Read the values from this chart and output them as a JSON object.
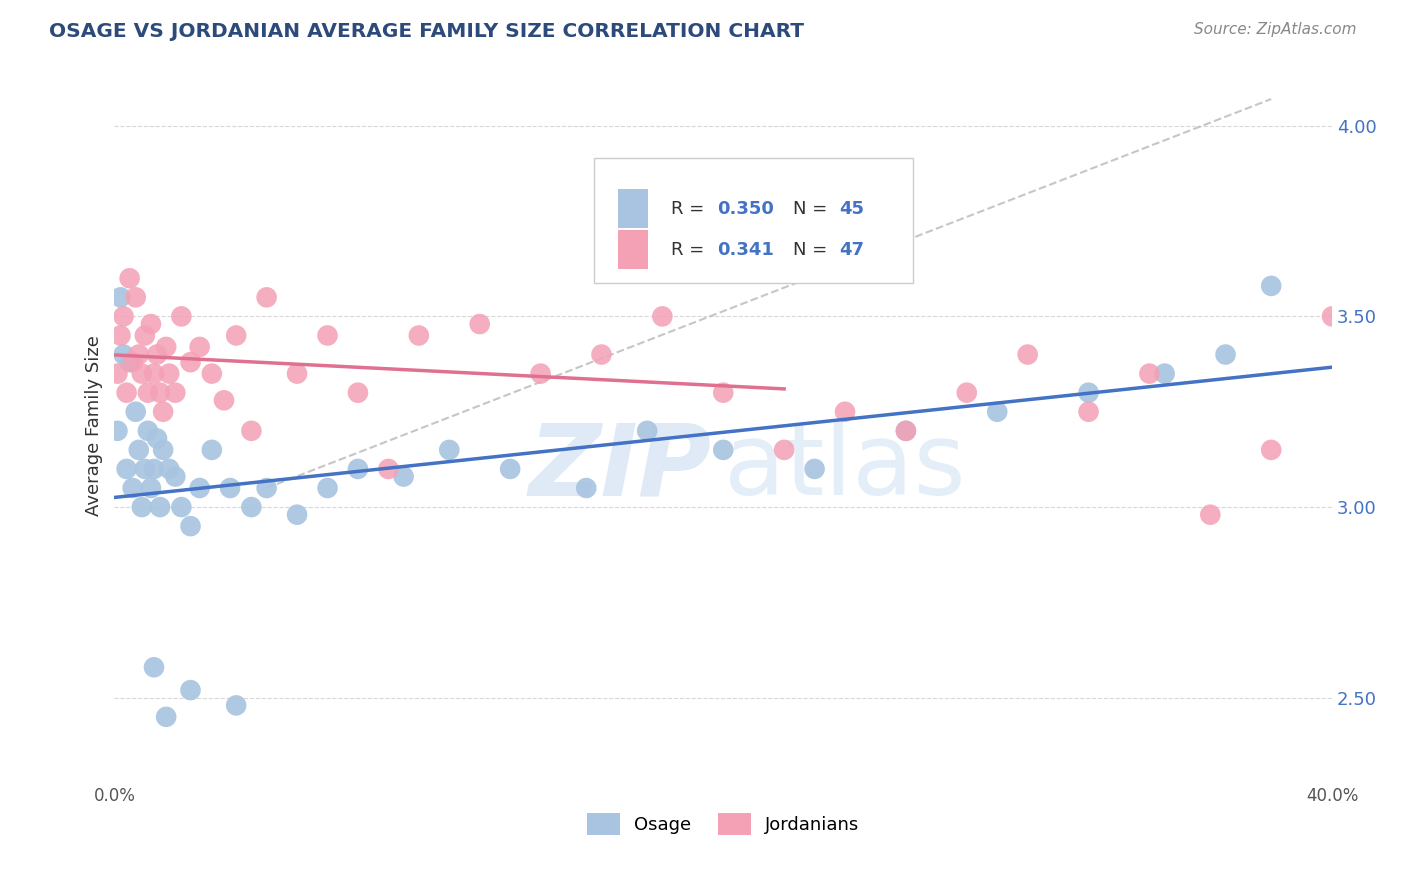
{
  "title": "OSAGE VS JORDANIAN AVERAGE FAMILY SIZE CORRELATION CHART",
  "source": "Source: ZipAtlas.com",
  "ylabel": "Average Family Size",
  "xlim": [
    0.0,
    0.4
  ],
  "ylim": [
    2.28,
    4.15
  ],
  "yticks": [
    2.5,
    3.0,
    3.5,
    4.0
  ],
  "xticks": [
    0.0,
    0.05,
    0.1,
    0.15,
    0.2,
    0.25,
    0.3,
    0.35,
    0.4
  ],
  "osage_R": 0.35,
  "osage_N": 45,
  "jordan_R": 0.341,
  "jordan_N": 47,
  "osage_color": "#a8c4e0",
  "jordan_color": "#f4a0b5",
  "osage_line_color": "#4472c4",
  "jordan_line_color": "#e07090",
  "trend_line_color": "#b8b8b8",
  "background_color": "#ffffff",
  "grid_color": "#d8d8d8",
  "title_color": "#2c4a7c",
  "osage_x": [
    0.001,
    0.002,
    0.003,
    0.004,
    0.005,
    0.006,
    0.007,
    0.008,
    0.009,
    0.01,
    0.011,
    0.012,
    0.013,
    0.014,
    0.015,
    0.016,
    0.018,
    0.02,
    0.022,
    0.025,
    0.028,
    0.032,
    0.038,
    0.045,
    0.05,
    0.06,
    0.07,
    0.08,
    0.095,
    0.11,
    0.13,
    0.155,
    0.175,
    0.2,
    0.23,
    0.26,
    0.29,
    0.32,
    0.345,
    0.365,
    0.38,
    0.04,
    0.025,
    0.017,
    0.013
  ],
  "osage_y": [
    3.2,
    3.55,
    3.4,
    3.1,
    3.38,
    3.05,
    3.25,
    3.15,
    3.0,
    3.1,
    3.2,
    3.05,
    3.1,
    3.18,
    3.0,
    3.15,
    3.1,
    3.08,
    3.0,
    2.95,
    3.05,
    3.15,
    3.05,
    3.0,
    3.05,
    2.98,
    3.05,
    3.1,
    3.08,
    3.15,
    3.1,
    3.05,
    3.2,
    3.15,
    3.1,
    3.2,
    3.25,
    3.3,
    3.35,
    3.4,
    3.58,
    2.48,
    2.52,
    2.45,
    2.58
  ],
  "jordan_x": [
    0.001,
    0.002,
    0.003,
    0.004,
    0.005,
    0.006,
    0.007,
    0.008,
    0.009,
    0.01,
    0.011,
    0.012,
    0.013,
    0.014,
    0.015,
    0.016,
    0.017,
    0.018,
    0.02,
    0.022,
    0.025,
    0.028,
    0.032,
    0.036,
    0.04,
    0.045,
    0.05,
    0.06,
    0.07,
    0.08,
    0.09,
    0.1,
    0.12,
    0.14,
    0.16,
    0.18,
    0.2,
    0.22,
    0.24,
    0.26,
    0.28,
    0.3,
    0.32,
    0.34,
    0.36,
    0.38,
    0.4
  ],
  "jordan_y": [
    3.35,
    3.45,
    3.5,
    3.3,
    3.6,
    3.38,
    3.55,
    3.4,
    3.35,
    3.45,
    3.3,
    3.48,
    3.35,
    3.4,
    3.3,
    3.25,
    3.42,
    3.35,
    3.3,
    3.5,
    3.38,
    3.42,
    3.35,
    3.28,
    3.45,
    3.2,
    3.55,
    3.35,
    3.45,
    3.3,
    3.1,
    3.45,
    3.48,
    3.35,
    3.4,
    3.5,
    3.3,
    3.15,
    3.25,
    3.2,
    3.3,
    3.4,
    3.25,
    3.35,
    2.98,
    3.15,
    3.5
  ],
  "watermark_zip": "ZIP",
  "watermark_atlas": "atlas",
  "legend_border_color": "#cccccc"
}
